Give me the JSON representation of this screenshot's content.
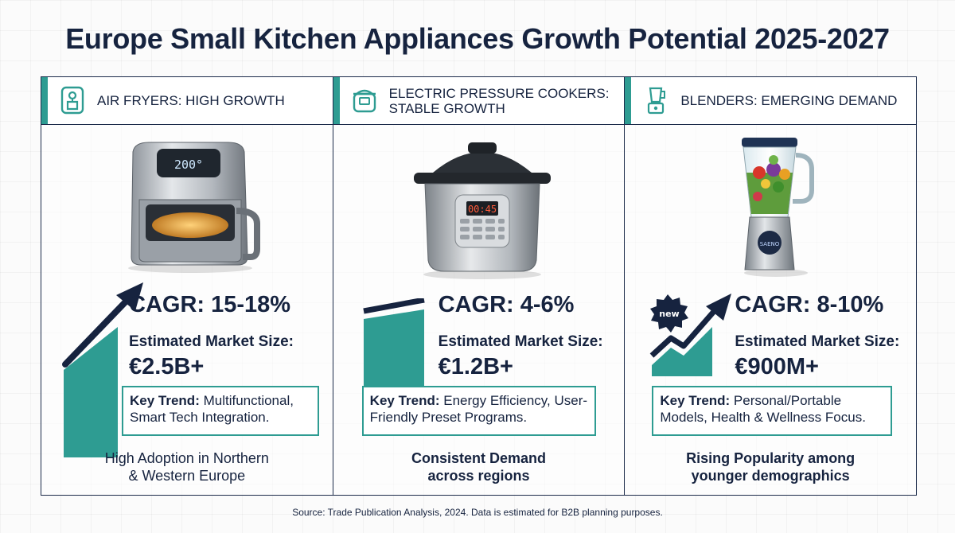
{
  "title": "Europe Small Kitchen Appliances Growth Potential 2025-2027",
  "colors": {
    "navy": "#16233f",
    "teal": "#2e9c92"
  },
  "panels": [
    {
      "heading": "AIR FRYERS: HIGH GROWTH",
      "icon": "air-fryer-icon",
      "product_display": "200°",
      "cagr": "CAGR: 15-18%",
      "market_label": "Estimated Market Size:",
      "market_value": "€2.5B+",
      "trend_label": "Key Trend:",
      "trend_text": " Multifunctional, Smart Tech Integration.",
      "footer_line1": "High Adoption in Northern",
      "footer_line2": "& Western Europe"
    },
    {
      "heading": "ELECTRIC PRESSURE COOKERS: STABLE GROWTH",
      "icon": "pressure-cooker-icon",
      "product_display": "00:45",
      "cagr": "CAGR: 4-6%",
      "market_label": "Estimated Market Size:",
      "market_value": "€1.2B+",
      "trend_label": "Key Trend:",
      "trend_text": " Energy Efficiency, User-Friendly Preset Programs.",
      "footer_line1": "Consistent Demand",
      "footer_line2": "across regions"
    },
    {
      "heading": "BLENDERS: EMERGING DEMAND",
      "icon": "blender-icon",
      "product_display": "SAENO",
      "badge": "new",
      "cagr": "CAGR: 8-10%",
      "market_label": "Estimated Market Size:",
      "market_value": "€900M+",
      "trend_label": "Key Trend:",
      "trend_text": " Personal/Portable Models, Health & Wellness Focus.",
      "footer_line1": "Rising Popularity among",
      "footer_line2": "younger demographics"
    }
  ],
  "source": "Source: Trade Publication Analysis, 2024. Data is estimated for B2B planning purposes."
}
